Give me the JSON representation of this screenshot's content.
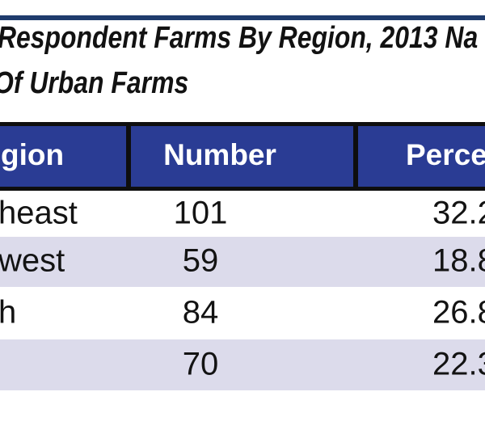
{
  "title": {
    "line1": "Respondent Farms By Region, 2013 Na",
    "line2": "Of Urban Farms"
  },
  "table": {
    "columns": [
      {
        "id": "region",
        "label": "gion"
      },
      {
        "id": "number",
        "label": "Number"
      },
      {
        "id": "percent",
        "label": "Perce"
      }
    ],
    "rows": [
      {
        "region": "heast",
        "number": "101",
        "percent": "32.2"
      },
      {
        "region": "west",
        "number": "59",
        "percent": "18.8"
      },
      {
        "region": "h",
        "number": "84",
        "percent": "26.8"
      },
      {
        "region": "",
        "number": "70",
        "percent": "22.3"
      }
    ]
  },
  "colors": {
    "header_background": "#2a3c94",
    "header_text": "#ffffff",
    "alt_row_background": "#dcdbeb",
    "top_rule": "#1f3c6d",
    "grid_border": "#0e0e0e",
    "body_text": "#131313"
  }
}
